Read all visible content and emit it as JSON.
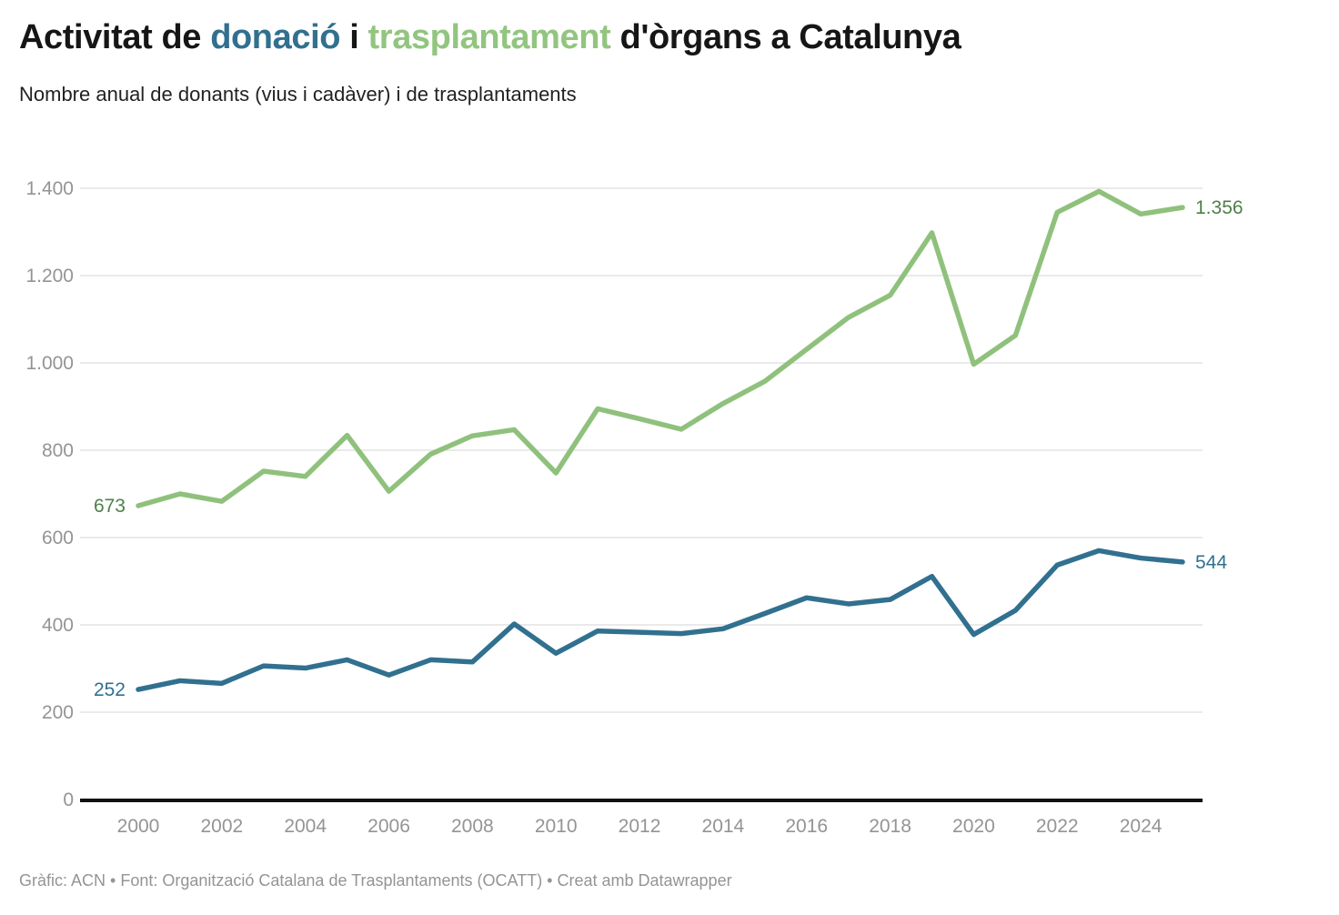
{
  "header": {
    "title_parts": [
      {
        "text": "Activitat de ",
        "color": "#161616"
      },
      {
        "text": "donació",
        "color": "#31708F"
      },
      {
        "text": " i ",
        "color": "#161616"
      },
      {
        "text": "trasplantament",
        "color": "#92C57F"
      },
      {
        "text": " d'òrgans a Catalunya",
        "color": "#161616"
      }
    ],
    "subtitle": "Nombre anual de donants (vius i cadàver) i de trasplantaments"
  },
  "footer": {
    "text": "Gràfic: ACN • Font: Organització Catalana de Trasplantaments (OCATT) • Creat amb Datawrapper"
  },
  "chart_data": {
    "type": "line",
    "title": "Activitat de donació i trasplantament d'òrgans a Catalunya",
    "subtitle": "Nombre anual de donants (vius i cadàver) i de trasplantaments",
    "x": [
      2000,
      2001,
      2002,
      2003,
      2004,
      2005,
      2006,
      2007,
      2008,
      2009,
      2010,
      2011,
      2012,
      2013,
      2014,
      2015,
      2016,
      2017,
      2018,
      2019,
      2020,
      2021,
      2022,
      2023,
      2024,
      2025
    ],
    "series": [
      {
        "name": "trasplantaments",
        "color": "#8FC17C",
        "label_color": "#4E8047",
        "start_label": "673",
        "end_label": "1.356",
        "values": [
          673,
          700,
          683,
          752,
          740,
          834,
          706,
          791,
          833,
          847,
          748,
          895,
          872,
          848,
          907,
          958,
          1031,
          1104,
          1155,
          1298,
          997,
          1063,
          1345,
          1393,
          1341,
          1356
        ]
      },
      {
        "name": "donants",
        "color": "#31708F",
        "label_color": "#31708F",
        "start_label": "252",
        "end_label": "544",
        "values": [
          252,
          272,
          266,
          306,
          301,
          320,
          285,
          320,
          315,
          402,
          335,
          386,
          383,
          380,
          391,
          426,
          462,
          448,
          458,
          511,
          378,
          433,
          537,
          570,
          553,
          544
        ]
      }
    ],
    "y_ticks": [
      {
        "value": 0,
        "label": "0"
      },
      {
        "value": 200,
        "label": "200"
      },
      {
        "value": 400,
        "label": "400"
      },
      {
        "value": 600,
        "label": "600"
      },
      {
        "value": 800,
        "label": "800"
      },
      {
        "value": 1000,
        "label": "1.000"
      },
      {
        "value": 1200,
        "label": "1.200"
      },
      {
        "value": 1400,
        "label": "1.400"
      }
    ],
    "x_ticks": [
      2000,
      2002,
      2004,
      2006,
      2008,
      2010,
      2012,
      2014,
      2016,
      2018,
      2020,
      2022,
      2024
    ],
    "ylim": [
      0,
      1400
    ],
    "xlabel": "",
    "ylabel": "",
    "grid": true,
    "legend_position": "in-title",
    "grid_color": "#E4E4E4",
    "axis_color": "#111111",
    "tick_label_color": "#949494"
  }
}
